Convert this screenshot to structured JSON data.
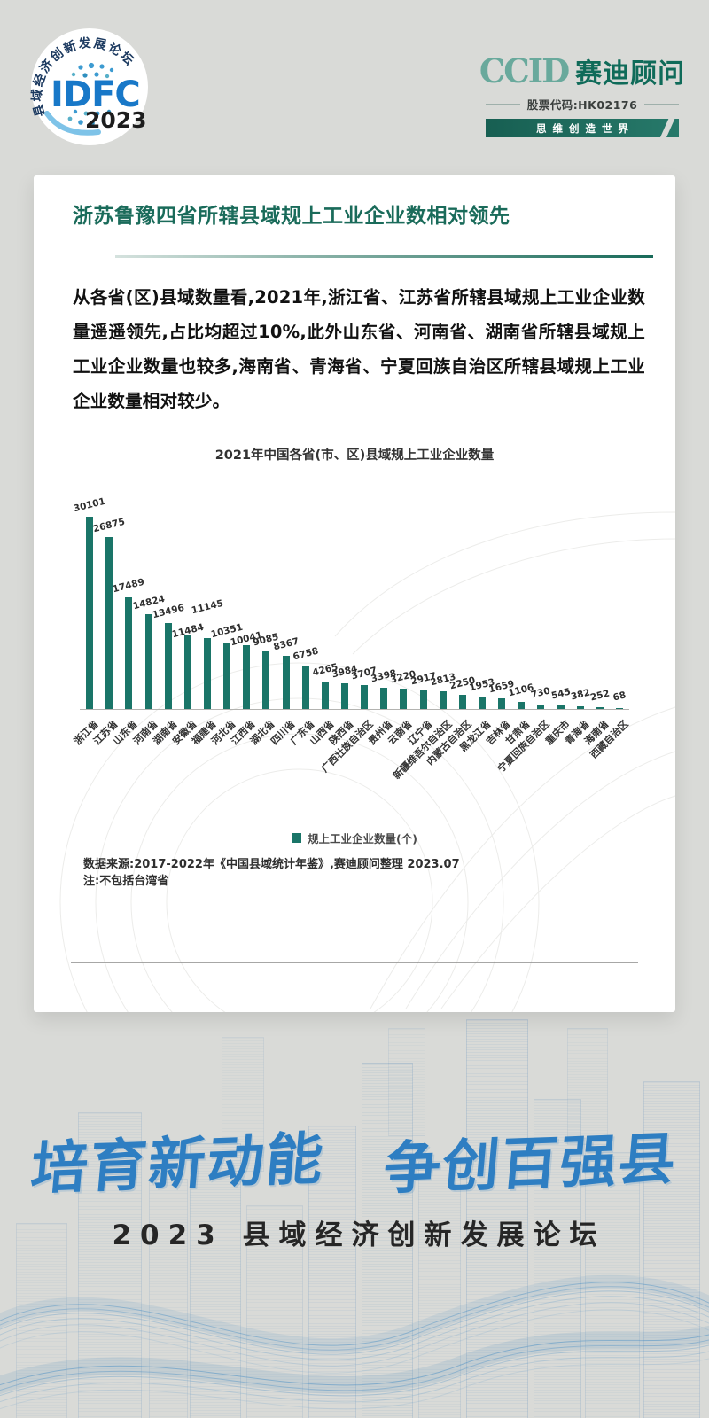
{
  "header": {
    "idfc_logo": {
      "ring_text": "县域经济创新发展论坛",
      "acronym": "IDFC",
      "year": "2023"
    },
    "ccid": {
      "latin": "CCID",
      "cn": "赛迪顾问",
      "stock": "股票代码:HK02176",
      "slogan": "思维创造世界"
    }
  },
  "card": {
    "title": "浙苏鲁豫四省所辖县域规上工业企业数相对领先",
    "paragraph": "从各省(区)县域数量看,2021年,浙江省、江苏省所辖县域规上工业企业数量遥遥领先,占比均超过10%,此外山东省、河南省、湖南省所辖县域规上工业企业数量也较多,海南省、青海省、宁夏回族自治区所辖县域规上工业企业数量相对较少。",
    "source_line1": "数据来源:2017-2022年《中国县域统计年鉴》,赛迪顾问整理 2023.07",
    "source_line2": "注:不包括台湾省"
  },
  "chart_data": {
    "type": "bar",
    "title": "2021年中国各省(市、区)县域规上工业企业数量",
    "legend": "规上工业企业数量(个)",
    "legend_position": "bottom",
    "bar_color": "#1a7568",
    "grid": false,
    "ylim": [
      0,
      30101
    ],
    "categories": [
      "浙江省",
      "江苏省",
      "山东省",
      "河南省",
      "湖南省",
      "安徽省",
      "福建省",
      "河北省",
      "江西省",
      "湖北省",
      "四川省",
      "广东省",
      "山西省",
      "陕西省",
      "广西壮族自治区",
      "贵州省",
      "云南省",
      "辽宁省",
      "新疆维吾尔自治区",
      "内蒙古自治区",
      "黑龙江省",
      "吉林省",
      "甘肃省",
      "宁夏回族自治区",
      "重庆市",
      "青海省",
      "海南省",
      "西藏自治区"
    ],
    "values": [
      30101,
      26875,
      17489,
      14824,
      13496,
      11484,
      11145,
      10351,
      10041,
      9085,
      8367,
      6758,
      4265,
      3984,
      3707,
      3398,
      3220,
      2917,
      2813,
      2250,
      1953,
      1659,
      1106,
      730,
      545,
      382,
      252,
      68
    ]
  },
  "footer": {
    "slogan_part1": "培育新动能",
    "slogan_part2": "争创百强县",
    "subtitle": "2023 县域经济创新发展论坛"
  }
}
